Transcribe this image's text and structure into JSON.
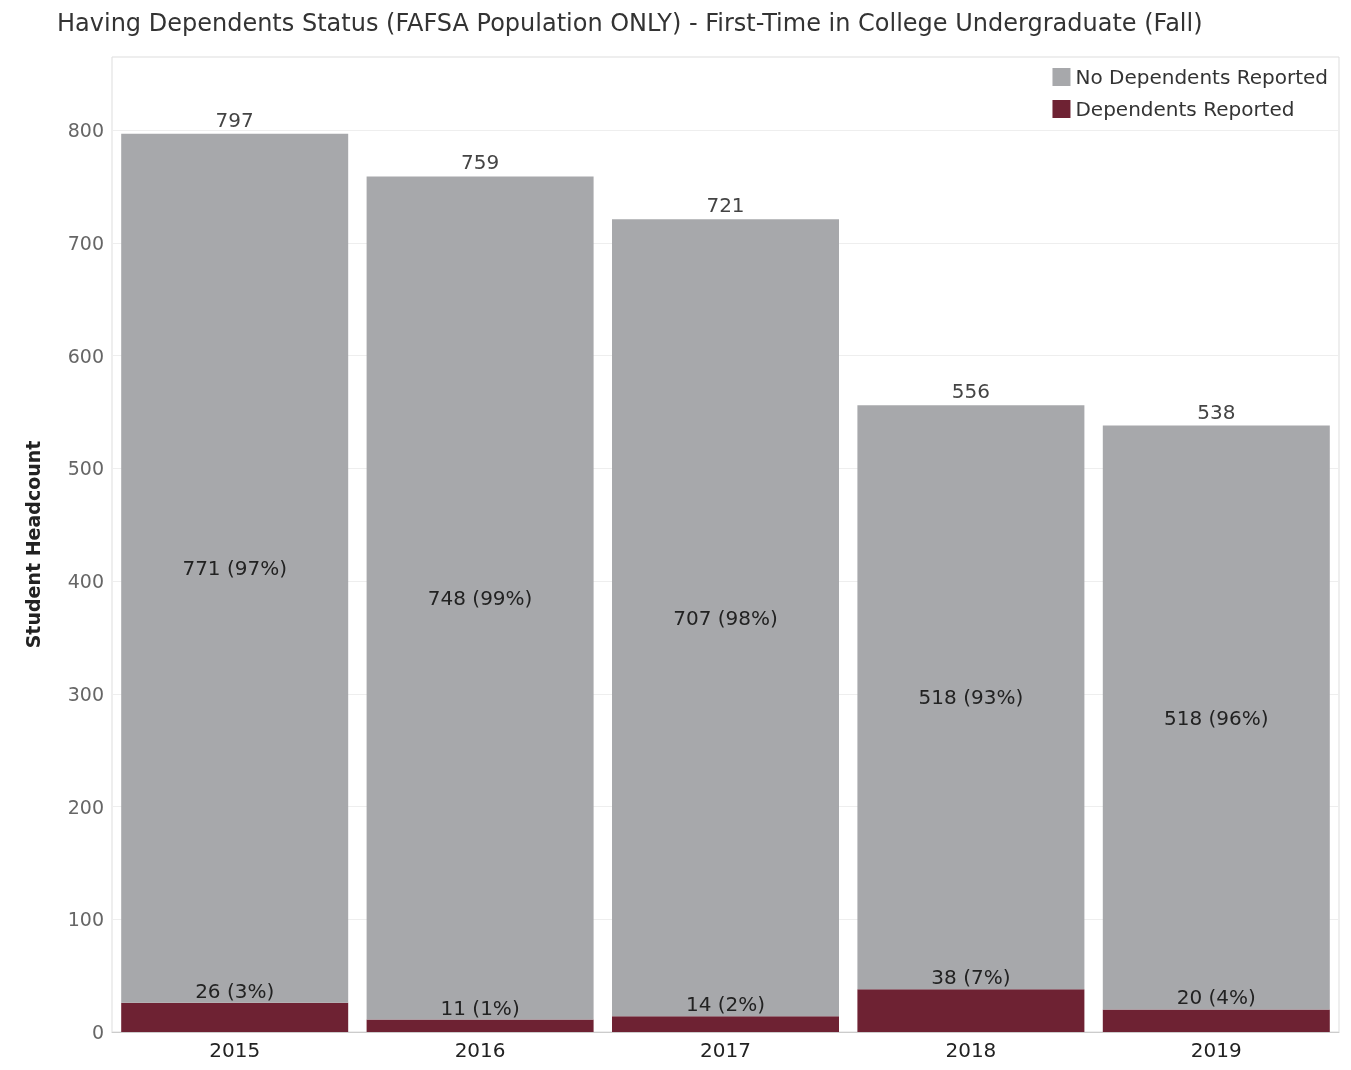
{
  "chart_data": {
    "type": "bar",
    "title": "Having Dependents Status (FAFSA Population ONLY) - First-Time in College Undergraduate (Fall)",
    "ylabel": "Student Headcount",
    "categories": [
      "2015",
      "2016",
      "2017",
      "2018",
      "2019"
    ],
    "stacked": true,
    "series": [
      {
        "name": "Dependents Reported",
        "color": "#6e2233",
        "values": [
          26,
          11,
          14,
          38,
          20
        ],
        "value_labels": [
          "26 (3%)",
          "11 (1%)",
          "14 (2%)",
          "38 (7%)",
          "20 (4%)"
        ]
      },
      {
        "name": "No Dependents Reported",
        "color": "#a7a8ab",
        "values": [
          771,
          748,
          707,
          518,
          518
        ],
        "value_labels": [
          "771 (97%)",
          "748 (99%)",
          "707 (98%)",
          "518 (93%)",
          "518 (96%)"
        ]
      }
    ],
    "totals": [
      "797",
      "759",
      "721",
      "556",
      "538"
    ],
    "ylim": [
      0,
      865
    ],
    "yticks": [
      0,
      100,
      200,
      300,
      400,
      500,
      600,
      700,
      800
    ],
    "grid": "y",
    "legend": "top right"
  }
}
